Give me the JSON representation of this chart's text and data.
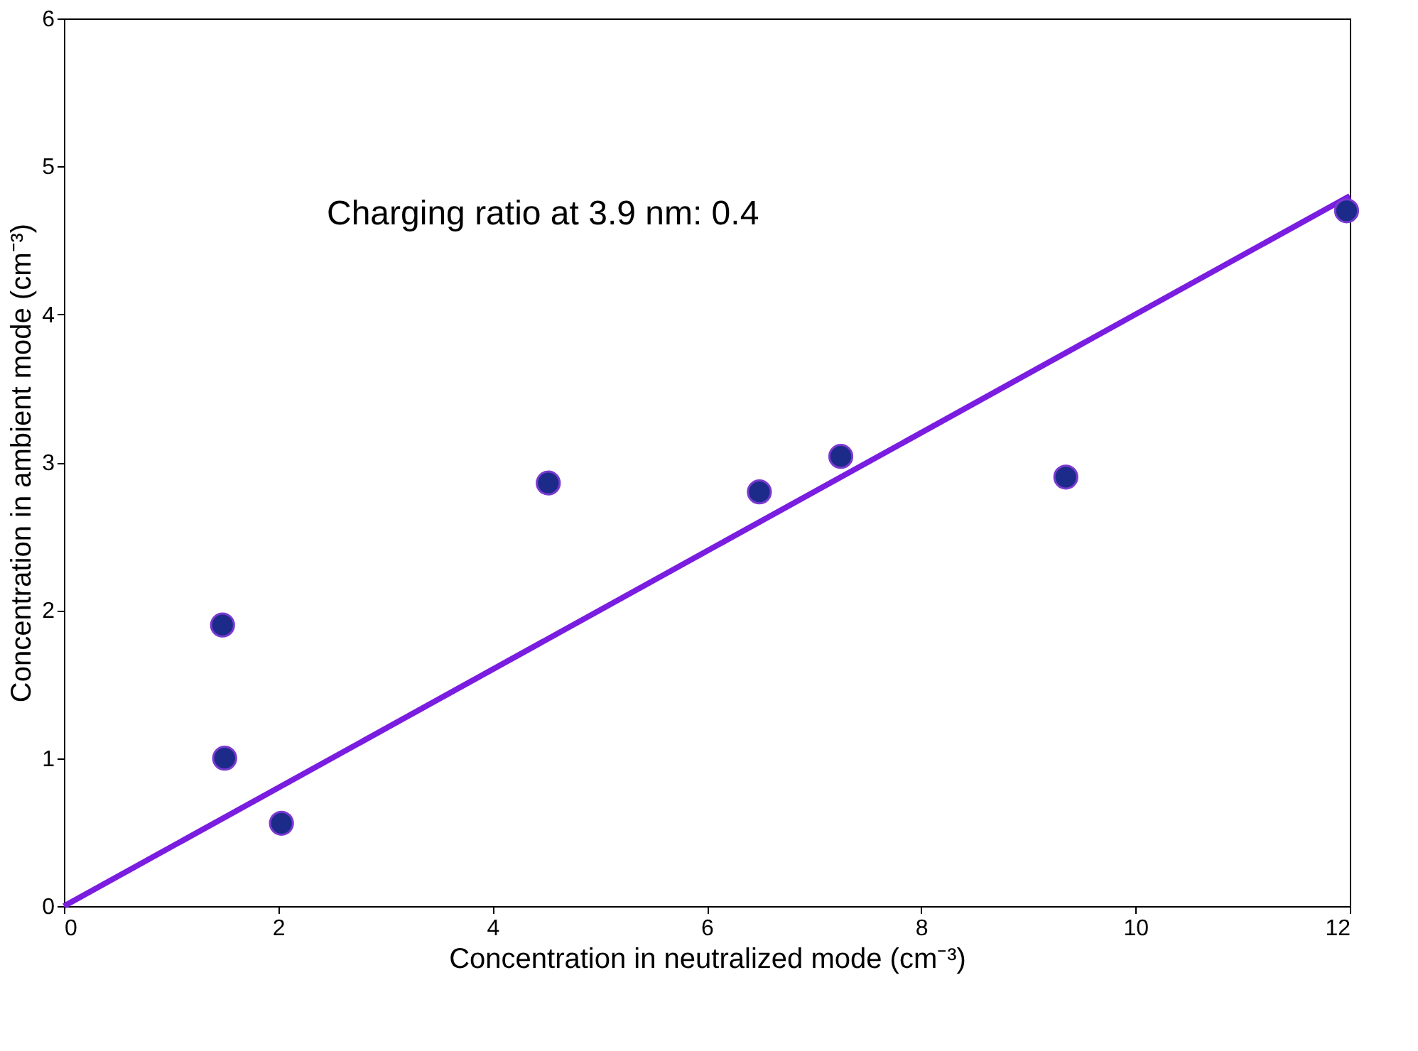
{
  "chart_data": {
    "type": "scatter",
    "xlabel": "Concentration in neutralized mode (cm⁻³)",
    "ylabel": "Concentration in ambient mode (cm⁻³)",
    "annotations": [
      "Charging ratio at 3.9 nm: 0.4"
    ],
    "xlim": [
      0,
      12
    ],
    "xticks": [
      0,
      2,
      4,
      6,
      8,
      10,
      12
    ],
    "ylim": [
      0,
      6
    ],
    "yticks": [
      0,
      1,
      2,
      3,
      4,
      5,
      6
    ],
    "grid": false,
    "series": [
      {
        "color": "#1c2a8a",
        "marker": "circle",
        "x": [
          1.48,
          1.5,
          2.03,
          4.52,
          6.49,
          7.25,
          9.35,
          11.97
        ],
        "values": [
          1.9,
          1.0,
          0.56,
          2.86,
          2.8,
          3.04,
          2.9,
          4.7
        ]
      },
      {
        "type": "line",
        "color": "#7a1de0",
        "line_style": "solid",
        "marker": "none",
        "x": [
          0,
          12
        ],
        "values": [
          0,
          4.8
        ]
      }
    ]
  }
}
